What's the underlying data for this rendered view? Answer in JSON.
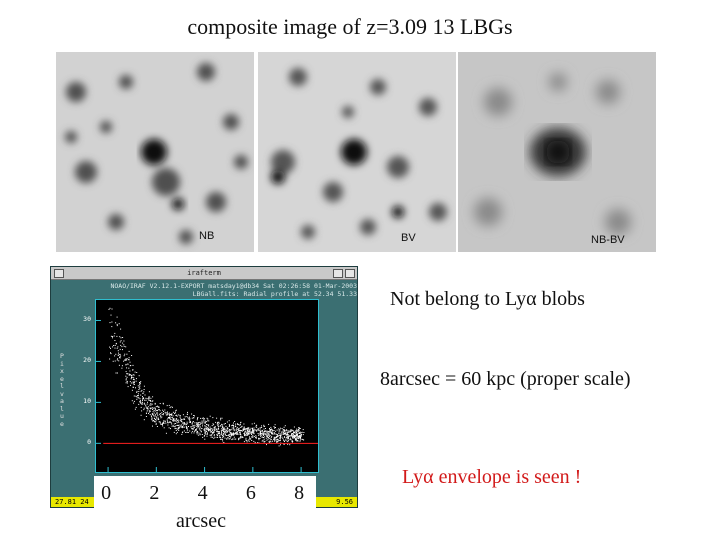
{
  "title": "composite image of z=3.09 13 LBGs",
  "panels": [
    {
      "label": "NB"
    },
    {
      "label": "BV"
    },
    {
      "label": "NB-BV"
    }
  ],
  "window": {
    "title": "irafterm",
    "header_line1": "NOAO/IRAF V2.12.1-EXPORT matsday1@db34 Sat 02:26:58 01-Mar-2003",
    "header_line2": "LBGall.fits: Radial profile at 52.34 51.33",
    "ylabel": "Pixel value",
    "status_left": "27.81  24",
    "status_right": "9.56"
  },
  "chart_data": {
    "type": "scatter",
    "xlabel": "arcsec",
    "ylabel": "Pixel value",
    "x_ticks": [
      "0",
      "2",
      "4",
      "6",
      "8"
    ],
    "y_ticks": [
      "30",
      "20",
      "10",
      "0"
    ],
    "xlim": [
      -0.5,
      8.7
    ],
    "ylim": [
      -7,
      35
    ],
    "reference_line": {
      "y": 0,
      "color": "#ff2020"
    },
    "profile": {
      "x": [
        0.0,
        0.5,
        1.0,
        1.5,
        2.0,
        3.0,
        4.0,
        5.0,
        6.0,
        7.0,
        8.0
      ],
      "y": [
        28,
        23,
        15,
        10,
        7,
        5,
        3.8,
        3,
        2.6,
        2.2,
        2.0
      ]
    },
    "point_color": "#ffffff"
  },
  "notes": {
    "note1": "Not belong to Lyα blobs",
    "note2": "8arcsec = 60 kpc (proper scale)",
    "note3": "Lyα  envelope is seen !"
  }
}
